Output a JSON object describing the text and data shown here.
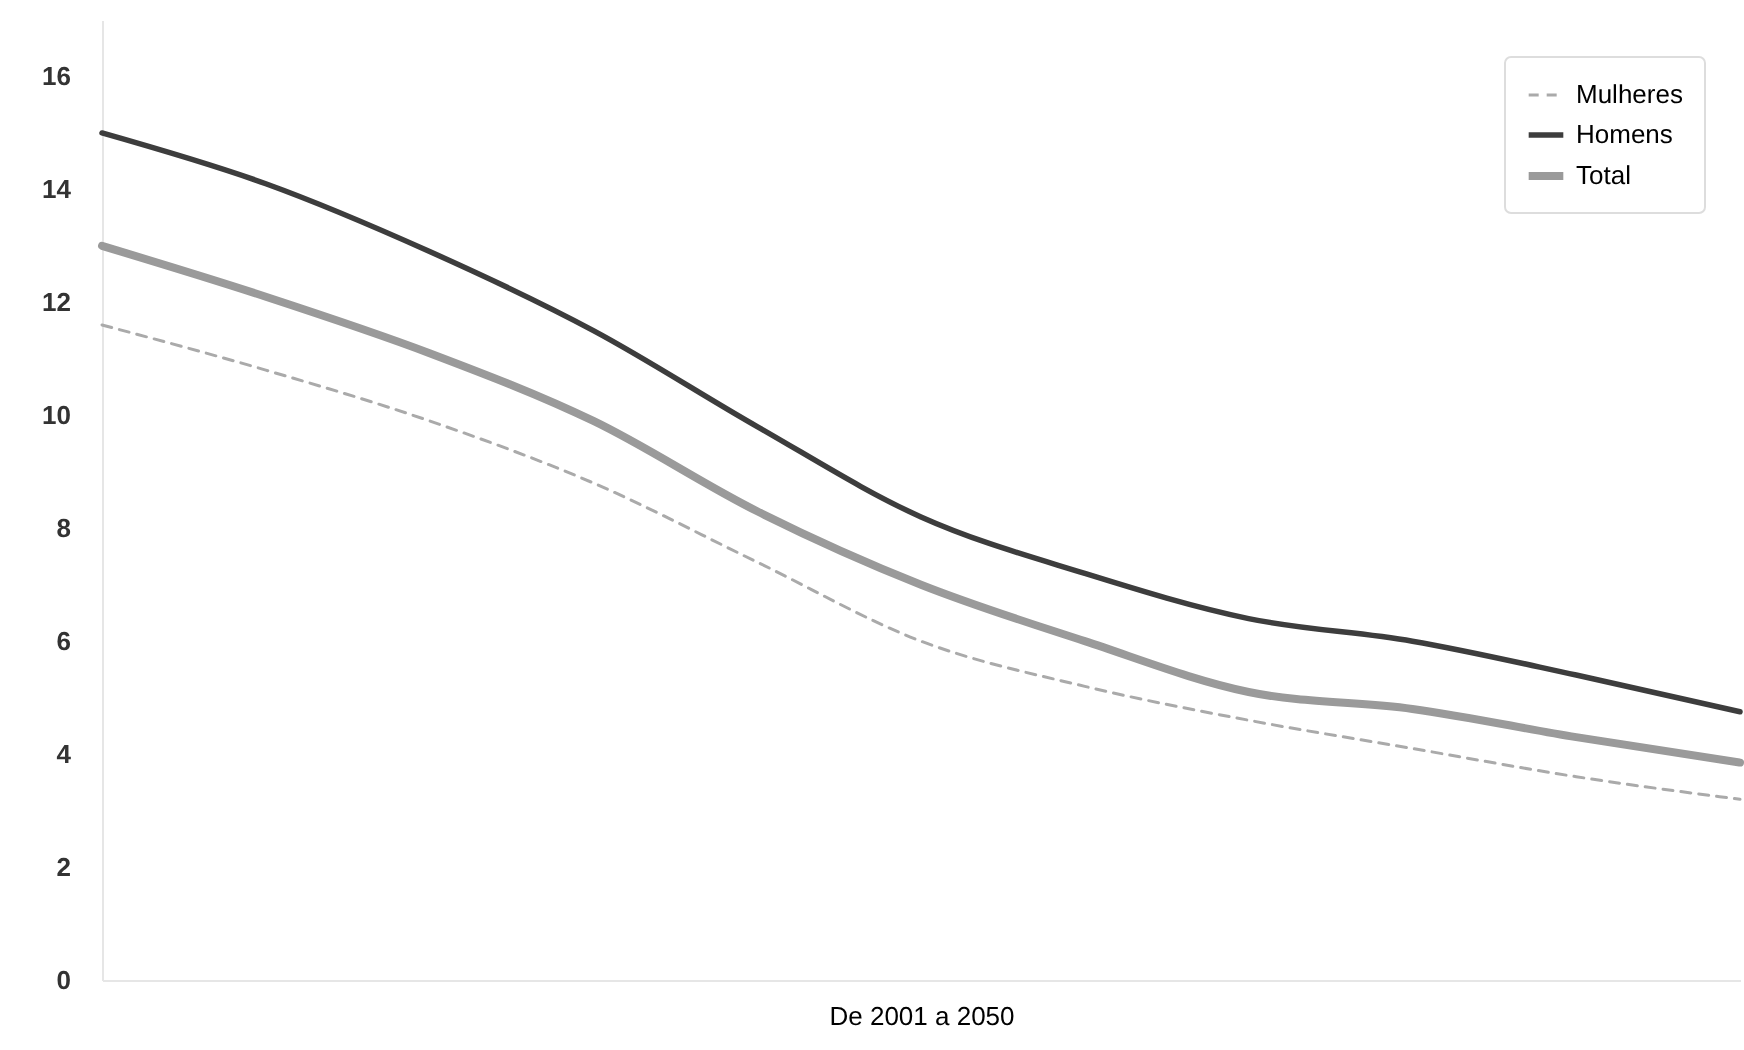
{
  "chart_data": {
    "type": "line",
    "xlabel": "De 2001 a 2050",
    "categories": [
      null,
      null,
      null,
      null,
      null,
      null,
      null,
      null,
      null,
      null,
      null
    ],
    "series": [
      {
        "name": "Mulheres",
        "color": "#aaaaaa",
        "line_style": "dashed",
        "values": [
          11.6,
          10.8,
          9.9,
          8.8,
          7.4,
          6.0,
          5.2,
          4.6,
          4.1,
          3.6,
          3.2
        ]
      },
      {
        "name": "Homens",
        "color": "#3d3d3d",
        "line_style": "solid",
        "values": [
          15.0,
          14.1,
          12.9,
          11.5,
          9.8,
          8.2,
          7.2,
          6.4,
          6.0,
          5.4,
          4.75
        ]
      },
      {
        "name": "Total",
        "color": "#9a9a9a",
        "line_style": "solid",
        "values": [
          13.0,
          12.1,
          11.1,
          9.9,
          8.3,
          7.0,
          6.0,
          5.1,
          4.8,
          4.3,
          3.85
        ]
      }
    ],
    "ylim": [
      0,
      17
    ],
    "yticks": [
      0,
      2,
      4,
      6,
      8,
      10,
      12,
      14,
      16
    ],
    "grid": false,
    "legend": "top right",
    "tick_labels": "y",
    "marker": "none"
  }
}
